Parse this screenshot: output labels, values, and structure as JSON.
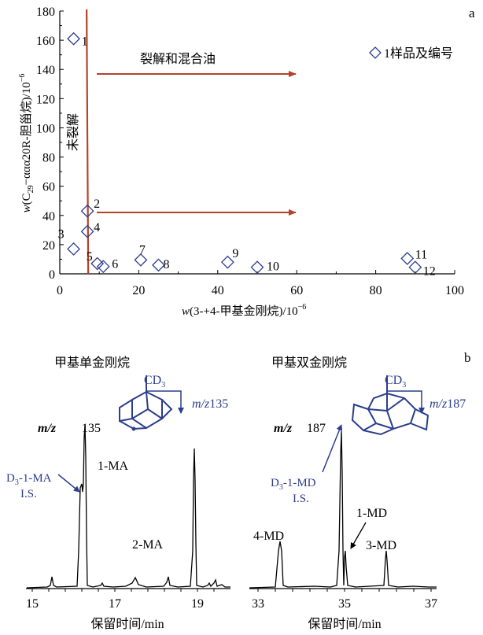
{
  "panel_a": {
    "label": "a",
    "xlabel_pre": "w",
    "xlabel_main": "(3-+4-甲基金刚烷)/10",
    "xlabel_exp": "−6",
    "ylabel_pre": "w",
    "ylabel_c": "(C",
    "ylabel_sub": "29",
    "ylabel_main": "−ααα20R-胆甾烷)/10",
    "ylabel_exp": "−6",
    "legend": "1样品及编号",
    "region_cracked": "裂解和混合油",
    "region_uncracked": "未裂解",
    "xticks": [
      "0",
      "20",
      "40",
      "60",
      "80",
      "100"
    ],
    "yticks": [
      "0",
      "20",
      "40",
      "60",
      "80",
      "100",
      "120",
      "140",
      "160",
      "180"
    ],
    "colors": {
      "marker": "#2c3e8c",
      "line": "#b4432c",
      "arrow": "#b4432c"
    }
  },
  "chart_data": {
    "type": "scatter",
    "xlabel": "w(3-+4-甲基金刚烷)/10−6",
    "ylabel": "w(C29−ααα20R-胆甾烷)/10−6",
    "xlim": [
      0,
      100
    ],
    "ylim": [
      0,
      180
    ],
    "threshold_x": 7,
    "points": [
      {
        "id": "1",
        "x": 3.5,
        "y": 161
      },
      {
        "id": "2",
        "x": 7,
        "y": 43
      },
      {
        "id": "3",
        "x": 3.5,
        "y": 17
      },
      {
        "id": "4",
        "x": 7,
        "y": 29
      },
      {
        "id": "5",
        "x": 9.5,
        "y": 7
      },
      {
        "id": "6",
        "x": 11,
        "y": 5
      },
      {
        "id": "7",
        "x": 20.5,
        "y": 9.5
      },
      {
        "id": "8",
        "x": 25,
        "y": 6
      },
      {
        "id": "9",
        "x": 42.5,
        "y": 8
      },
      {
        "id": "10",
        "x": 50,
        "y": 4.5
      },
      {
        "id": "11",
        "x": 88,
        "y": 10.5
      },
      {
        "id": "12",
        "x": 90,
        "y": 4.5
      }
    ]
  },
  "panel_b": {
    "label": "b",
    "left": {
      "title": "甲基单金刚烷",
      "mz_label": "m/z",
      "mz_value": "135",
      "struct_label": "CD",
      "struct_sub": "3",
      "struct_mz_pre": "m/z",
      "struct_mz_val": "135",
      "is_label1": "D",
      "is_label1_sub": "3",
      "is_label1_rest": "-1-MA",
      "is_label2": "I.S.",
      "peak_1": "1-MA",
      "peak_2": "2-MA",
      "xticks": [
        "15",
        "17",
        "19"
      ],
      "xlabel": "保留时间/min"
    },
    "right": {
      "title": "甲基双金刚烷",
      "mz_label": "m/z",
      "mz_value": "187",
      "struct_label": "CD",
      "struct_sub": "3",
      "struct_mz_pre": "m/z",
      "struct_mz_val": "187",
      "is_label1": "D",
      "is_label1_sub": "3",
      "is_label1_rest": "-1-MD",
      "is_label2": "I.S.",
      "peak_4": "4-MD",
      "peak_1": "1-MD",
      "peak_3": "3-MD",
      "xticks": [
        "33",
        "35",
        "37"
      ],
      "xlabel": "保留时间/min"
    }
  }
}
